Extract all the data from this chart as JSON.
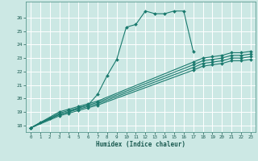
{
  "xlabel": "Humidex (Indice chaleur)",
  "bg_color": "#cce8e4",
  "grid_color": "#b0d8d2",
  "line_color": "#1a7a6e",
  "xlim": [
    -0.5,
    23.5
  ],
  "ylim": [
    17.5,
    27.2
  ],
  "yticks": [
    18,
    19,
    20,
    21,
    22,
    23,
    24,
    25,
    26
  ],
  "xticks": [
    0,
    1,
    2,
    3,
    4,
    5,
    6,
    7,
    8,
    9,
    10,
    11,
    12,
    13,
    14,
    15,
    16,
    17,
    18,
    19,
    20,
    21,
    22,
    23
  ],
  "series": [
    {
      "x": [
        0,
        1,
        2,
        3,
        4,
        5,
        6,
        7,
        8,
        9,
        10,
        11,
        12,
        13,
        14,
        15,
        16,
        17
      ],
      "y": [
        17.8,
        18.2,
        18.5,
        18.8,
        19.0,
        19.3,
        19.5,
        20.3,
        21.7,
        22.9,
        25.3,
        25.5,
        26.5,
        26.3,
        26.3,
        26.5,
        26.5,
        23.5
      ]
    },
    {
      "x": [
        0,
        3,
        4,
        5,
        6,
        7,
        17,
        18,
        19,
        20,
        21,
        22,
        23
      ],
      "y": [
        17.8,
        19.0,
        19.2,
        19.4,
        19.6,
        19.8,
        22.7,
        23.0,
        23.1,
        23.2,
        23.4,
        23.4,
        23.5
      ]
    },
    {
      "x": [
        0,
        3,
        4,
        5,
        6,
        7,
        17,
        18,
        19,
        20,
        21,
        22,
        23
      ],
      "y": [
        17.8,
        18.9,
        19.1,
        19.3,
        19.5,
        19.7,
        22.5,
        22.8,
        22.9,
        23.0,
        23.2,
        23.2,
        23.3
      ]
    },
    {
      "x": [
        0,
        3,
        4,
        5,
        6,
        7,
        17,
        18,
        19,
        20,
        21,
        22,
        23
      ],
      "y": [
        17.8,
        18.8,
        19.0,
        19.2,
        19.4,
        19.6,
        22.3,
        22.6,
        22.7,
        22.8,
        23.0,
        23.0,
        23.1
      ]
    },
    {
      "x": [
        0,
        3,
        4,
        5,
        6,
        7,
        17,
        18,
        19,
        20,
        21,
        22,
        23
      ],
      "y": [
        17.8,
        18.7,
        18.9,
        19.1,
        19.3,
        19.5,
        22.1,
        22.4,
        22.5,
        22.6,
        22.8,
        22.8,
        22.9
      ]
    }
  ]
}
